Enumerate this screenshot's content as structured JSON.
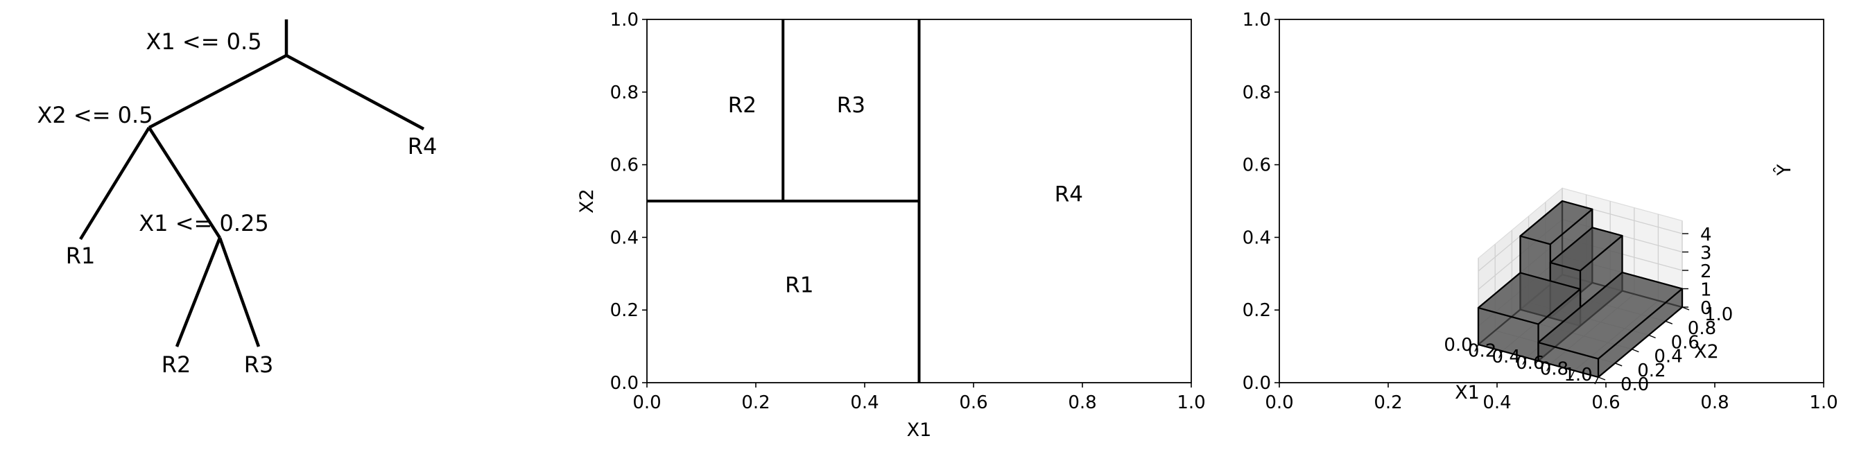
{
  "chart_data": [
    {
      "type": "tree",
      "nodes": [
        {
          "id": "root",
          "split": "X1 <= 0.5",
          "children": [
            "n2",
            "R4"
          ]
        },
        {
          "id": "n2",
          "split": "X2 <= 0.5",
          "children": [
            "R1",
            "n3"
          ]
        },
        {
          "id": "n3",
          "split": "X1 <= 0.25",
          "children": [
            "R2",
            "R3"
          ]
        }
      ],
      "leaves": [
        "R1",
        "R2",
        "R3",
        "R4"
      ]
    },
    {
      "type": "partition",
      "xlabel": "X1",
      "ylabel": "X2",
      "xlim": [
        0.0,
        1.0
      ],
      "ylim": [
        0.0,
        1.0
      ],
      "xticks": [
        "0.0",
        "0.2",
        "0.4",
        "0.6",
        "0.8",
        "1.0"
      ],
      "yticks": [
        "0.0",
        "0.2",
        "0.4",
        "0.6",
        "0.8",
        "1.0"
      ],
      "splits": [
        {
          "x1": 0.5,
          "x2": 0.5,
          "y1": 0.0,
          "y2": 1.0
        },
        {
          "x1": 0.0,
          "x2": 0.5,
          "y1": 0.5,
          "y2": 0.5
        },
        {
          "x1": 0.25,
          "x2": 0.25,
          "y1": 0.5,
          "y2": 1.0
        }
      ],
      "regions": [
        {
          "label": "R1",
          "x": 0.28,
          "y": 0.27
        },
        {
          "label": "R2",
          "x": 0.175,
          "y": 0.765
        },
        {
          "label": "R3",
          "x": 0.375,
          "y": 0.765
        },
        {
          "label": "R4",
          "x": 0.775,
          "y": 0.52
        }
      ]
    },
    {
      "type": "bar3d",
      "xlabel": "X1",
      "ylabel": "X2",
      "zlabel": "Ŷ",
      "xticks": [
        "0.0",
        "0.2",
        "0.4",
        "0.6",
        "0.8",
        "1.0"
      ],
      "yticks": [
        "0.0",
        "0.2",
        "0.4",
        "0.6",
        "0.8",
        "1.0"
      ],
      "zticks": [
        "0",
        "1",
        "2",
        "3",
        "4"
      ],
      "frame_xticks": [
        "0.0",
        "0.2",
        "0.4",
        "0.6",
        "0.8",
        "1.0"
      ],
      "frame_yticks": [
        "0.0",
        "0.2",
        "0.4",
        "0.6",
        "0.8",
        "1.0"
      ],
      "boxes": [
        {
          "region": "R1",
          "x": [
            0.0,
            0.5
          ],
          "y": [
            0.0,
            0.5
          ],
          "z": 2
        },
        {
          "region": "R2",
          "x": [
            0.0,
            0.25
          ],
          "y": [
            0.5,
            1.0
          ],
          "z": 4
        },
        {
          "region": "R3",
          "x": [
            0.25,
            0.5
          ],
          "y": [
            0.5,
            1.0
          ],
          "z": 3
        },
        {
          "region": "R4",
          "x": [
            0.5,
            1.0
          ],
          "y": [
            0.0,
            1.0
          ],
          "z": 1
        }
      ],
      "bar_color": "#5a5a5a"
    }
  ]
}
